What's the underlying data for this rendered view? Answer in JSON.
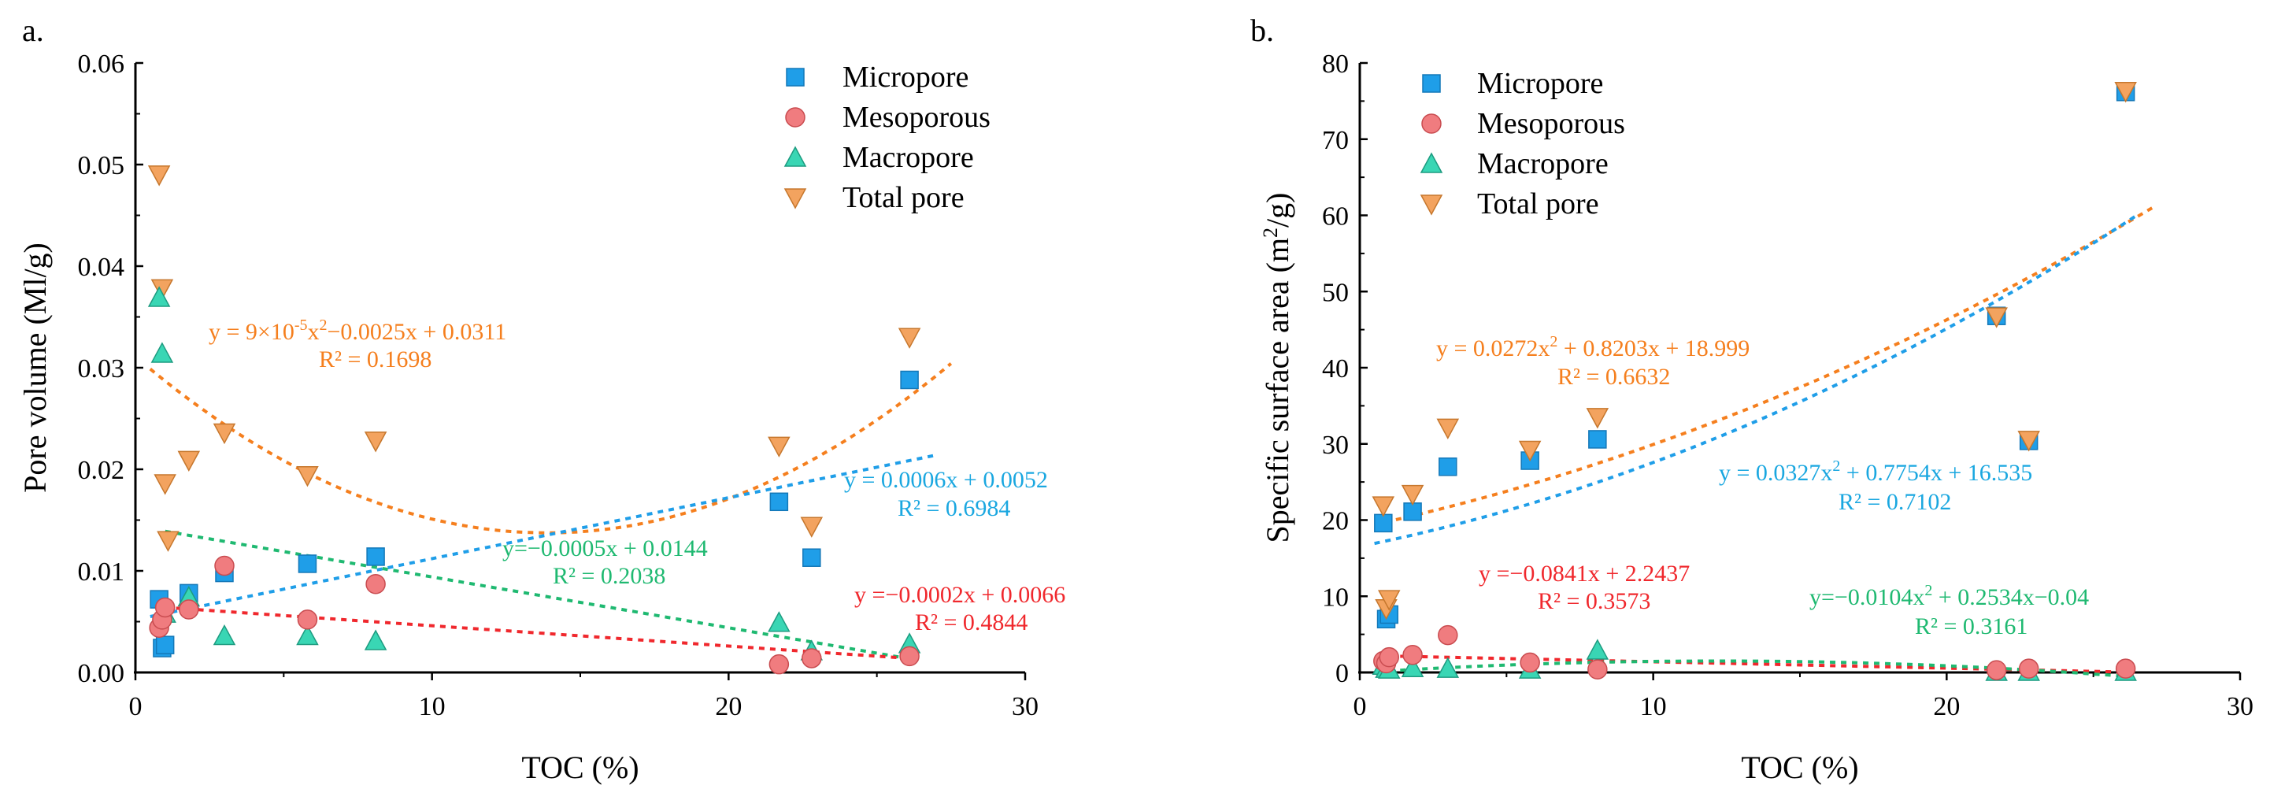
{
  "chart_data": [
    {
      "type": "scatter",
      "panel_label": "a.",
      "xlabel": "TOC (%)",
      "ylabel": "Pore volume (Ml/g)",
      "xlim": [
        0,
        30
      ],
      "ylim": [
        0,
        0.06
      ],
      "xticks": [
        0,
        10,
        20,
        30
      ],
      "yticks": [
        0.0,
        0.01,
        0.02,
        0.03,
        0.04,
        0.05,
        0.06
      ],
      "ytick_labels": [
        "0.00",
        "0.01",
        "0.02",
        "0.03",
        "0.04",
        "0.05",
        "0.06"
      ],
      "legend": [
        "Micropore",
        "Mesoporous",
        "Macropore",
        "Total pore"
      ],
      "series": [
        {
          "name": "Micropore",
          "marker": "square",
          "color": "#1f9ee8",
          "x": [
            0.8,
            0.9,
            1.0,
            1.8,
            3.0,
            5.8,
            8.1,
            21.7,
            22.8,
            26.1
          ],
          "y": [
            0.0072,
            0.0024,
            0.0027,
            0.0078,
            0.0098,
            0.0107,
            0.0114,
            0.0168,
            0.0113,
            0.0288
          ]
        },
        {
          "name": "Mesoporous",
          "marker": "circle",
          "color": "#f07c7f",
          "x": [
            0.8,
            0.9,
            1.0,
            1.8,
            3.0,
            5.8,
            8.1,
            21.7,
            22.8,
            26.1
          ],
          "y": [
            0.0044,
            0.0052,
            0.0064,
            0.0062,
            0.0105,
            0.0052,
            0.0087,
            0.0008,
            0.0014,
            0.0016
          ]
        },
        {
          "name": "Macropore",
          "marker": "triangle-up",
          "color": "#39d6b4",
          "x": [
            0.8,
            0.9,
            1.0,
            1.8,
            3.0,
            5.8,
            8.1,
            21.7,
            22.8,
            26.1
          ],
          "y": [
            0.0369,
            0.0314,
            0.0058,
            0.0074,
            0.0036,
            0.0036,
            0.0031,
            0.0049,
            0.0021,
            0.0028
          ]
        },
        {
          "name": "Total pore",
          "marker": "triangle-down",
          "color": "#f3a35f",
          "x": [
            0.8,
            0.9,
            1.0,
            1.1,
            1.8,
            3.0,
            5.8,
            8.1,
            21.7,
            22.8,
            26.1
          ],
          "y": [
            0.049,
            0.0378,
            0.0186,
            0.013,
            0.0209,
            0.0236,
            0.0194,
            0.0228,
            0.0223,
            0.0144,
            0.033
          ]
        }
      ],
      "trendlines": [
        {
          "name": "Total pore fit",
          "color": "#f57f1e",
          "kind": "poly2",
          "coef": [
            9e-05,
            -0.0025,
            0.0311
          ],
          "x_range": [
            0.5,
            27.5
          ]
        },
        {
          "name": "Micropore fit",
          "color": "#1f9ee8",
          "kind": "linear",
          "coef": [
            0.0006,
            0.0052
          ],
          "x_range": [
            0.5,
            27.0
          ]
        },
        {
          "name": "Macropore fit",
          "color": "#1fb971",
          "kind": "linear",
          "coef": [
            -0.0005,
            0.0144
          ],
          "x_range": [
            1.0,
            26.0
          ]
        },
        {
          "name": "Mesoporous fit",
          "color": "#f0282d",
          "kind": "linear",
          "coef": [
            -0.0002,
            0.0066
          ],
          "x_range": [
            1.0,
            26.5
          ]
        }
      ],
      "annotations": [
        {
          "line1": "y = 9×10",
          "sup1": "-5",
          "line1b": "x",
          "sup2": "2",
          "line1c": "−0.0025x + 0.0311",
          "line2": "R² = 0.1698",
          "color": "#f57f1e"
        },
        {
          "line1": "y = 0.0006x + 0.0052",
          "line2": "R² = 0.6984",
          "color": "#1aa7e0"
        },
        {
          "line1": "y=−0.0005x + 0.0144",
          "line2": "R² = 0.2038",
          "color": "#1fb971"
        },
        {
          "line1": "y =−0.0002x + 0.0066",
          "line2": "R² = 0.4844",
          "color": "#f0282d"
        }
      ]
    },
    {
      "type": "scatter",
      "panel_label": "b.",
      "xlabel": "TOC (%)",
      "ylabel_prefix": "Specific surface area (m",
      "ylabel_sup": "2",
      "ylabel_suffix": "/g)",
      "xlim": [
        0,
        30
      ],
      "ylim": [
        0,
        80
      ],
      "xticks": [
        0,
        10,
        20,
        30
      ],
      "yticks": [
        0,
        10,
        20,
        30,
        40,
        50,
        60,
        70,
        80
      ],
      "ytick_labels": [
        "0",
        "10",
        "20",
        "30",
        "40",
        "50",
        "60",
        "70",
        "80"
      ],
      "legend": [
        "Micropore",
        "Mesoporous",
        "Macropore",
        "Total pore"
      ],
      "series": [
        {
          "name": "Micropore",
          "marker": "square",
          "color": "#1f9ee8",
          "x": [
            0.8,
            0.9,
            1.0,
            1.8,
            3.0,
            5.8,
            8.1,
            21.7,
            22.8,
            26.1
          ],
          "y": [
            19.6,
            7.0,
            7.6,
            21.1,
            27.0,
            27.8,
            30.6,
            46.8,
            30.4,
            76.2
          ]
        },
        {
          "name": "Mesoporous",
          "marker": "circle",
          "color": "#f07c7f",
          "x": [
            0.8,
            0.9,
            1.0,
            1.8,
            3.0,
            5.8,
            8.1,
            21.7,
            22.8,
            26.1
          ],
          "y": [
            1.5,
            1.2,
            2.0,
            2.3,
            4.9,
            1.3,
            0.4,
            0.3,
            0.5,
            0.5
          ]
        },
        {
          "name": "Macropore",
          "marker": "triangle-up",
          "color": "#39d6b4",
          "x": [
            0.8,
            0.9,
            1.0,
            1.8,
            3.0,
            5.8,
            8.1,
            21.7,
            22.8,
            26.1
          ],
          "y": [
            0.9,
            0.5,
            0.4,
            0.6,
            0.5,
            0.4,
            2.9,
            0.1,
            0.1,
            0.1
          ]
        },
        {
          "name": "Total pore",
          "marker": "triangle-down",
          "color": "#f3a35f",
          "x": [
            0.8,
            0.9,
            1.0,
            1.8,
            3.0,
            5.8,
            8.1,
            21.7,
            22.8,
            26.1
          ],
          "y": [
            21.9,
            8.4,
            9.6,
            23.4,
            32.1,
            29.2,
            33.5,
            46.7,
            30.5,
            76.3
          ]
        }
      ],
      "trendlines": [
        {
          "name": "Total pore fit",
          "color": "#f57f1e",
          "kind": "poly2",
          "coef": [
            0.0272,
            0.8203,
            18.999
          ],
          "x_range": [
            0.5,
            27.0
          ]
        },
        {
          "name": "Micropore fit",
          "color": "#1f9ee8",
          "kind": "poly2",
          "coef": [
            0.0327,
            0.7754,
            16.535
          ],
          "x_range": [
            0.5,
            26.5
          ]
        },
        {
          "name": "Mesoporous fit",
          "color": "#f0282d",
          "kind": "linear",
          "coef": [
            -0.0841,
            2.2437
          ],
          "x_range": [
            1.0,
            26.5
          ]
        },
        {
          "name": "Macropore fit",
          "color": "#1fb971",
          "kind": "poly2",
          "coef": [
            -0.0104,
            0.2534,
            -0.04
          ],
          "x_range": [
            1.0,
            26.5
          ]
        }
      ],
      "annotations": [
        {
          "line1": "y = 0.0272x",
          "sup1": "2",
          "line1c": " + 0.8203x + 18.999",
          "line2": "R² = 0.6632",
          "color": "#f57f1e"
        },
        {
          "line1": "y = 0.0327x",
          "sup1": "2",
          "line1c": " + 0.7754x + 16.535",
          "line2": "R² = 0.7102",
          "color": "#1aa7e0"
        },
        {
          "line1": "y =−0.0841x + 2.2437",
          "line2": "R² = 0.3573",
          "color": "#f0282d"
        },
        {
          "line1": "y=−0.0104x",
          "sup1": "2",
          "line1c": " + 0.2534x−0.04",
          "line2": "R² = 0.3161",
          "color": "#1fb971"
        }
      ]
    }
  ]
}
